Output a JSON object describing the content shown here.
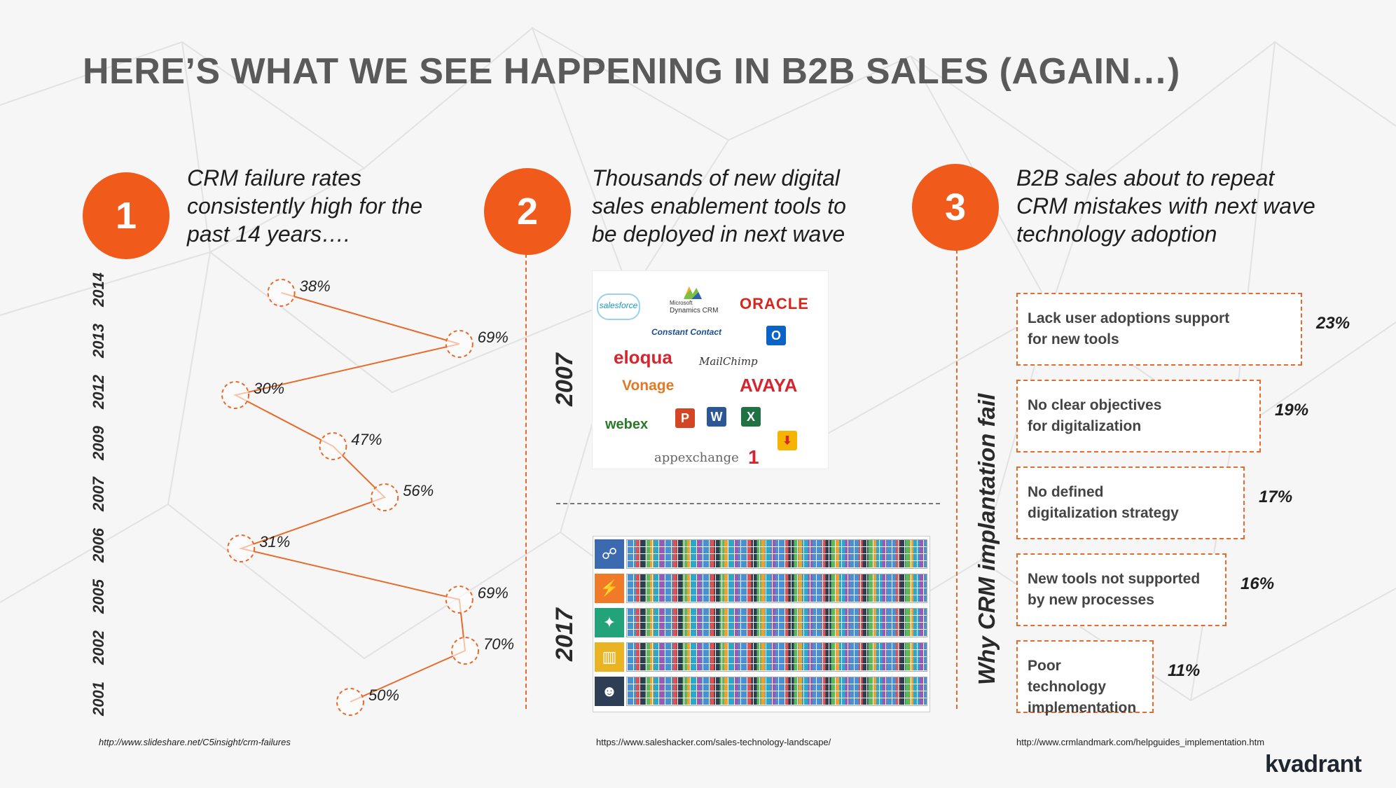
{
  "title": "HERE’S WHAT WE SEE HAPPENING IN B2B SALES (AGAIN…)",
  "colors": {
    "accent": "#f05a1a",
    "dash": "#e86a2a",
    "title": "#5a5a5a"
  },
  "columns": [
    {
      "number": "1",
      "heading": "CRM failure rates\nconsistently high for the\npast 14 years….",
      "source": "http://www.slideshare.net/C5insight/crm-failures"
    },
    {
      "number": "2",
      "heading": "Thousands of new digital\nsales enablement tools to\nbe deployed in next wave",
      "source": "https://www.saleshacker.com/sales-technology-landscape/"
    },
    {
      "number": "3",
      "heading": "B2B sales about to repeat\nCRM mistakes with next wave\ntechnology adoption",
      "source": "http://www.crmlandmark.com/helpguides_implementation.htm"
    }
  ],
  "chart_data": {
    "type": "line",
    "orientation": "vertical-years",
    "categories": [
      "2014",
      "2013",
      "2012",
      "2009",
      "2007",
      "2006",
      "2005",
      "2002",
      "2001"
    ],
    "values": [
      38,
      69,
      30,
      47,
      56,
      31,
      69,
      70,
      50
    ],
    "labels": [
      "38%",
      "69%",
      "30%",
      "47%",
      "56%",
      "31%",
      "69%",
      "70%",
      "50%"
    ]
  },
  "tools": {
    "year_old": "2007",
    "year_new": "2017",
    "logos": {
      "salesforce": "salesforce",
      "dynamics_small": "Microsoft",
      "dynamics": "Dynamics CRM",
      "oracle": "ORACLE",
      "constant_contact": "Constant Contact",
      "eloqua": "eloqua",
      "mailchimp": "MailChimp",
      "vonage": "Vonage",
      "avaya": "AVAYA",
      "webex": "webex",
      "appexchange": "appexchange",
      "ppt": "P",
      "word": "W",
      "excel": "X",
      "outlook": "O"
    },
    "categories": [
      {
        "icon": "engagement-icon",
        "color": "#3c6ab0"
      },
      {
        "icon": "productivity-icon",
        "color": "#f07a28"
      },
      {
        "icon": "sales-intelligence-icon",
        "color": "#23a37a"
      },
      {
        "icon": "analytics-icon",
        "color": "#e9b321"
      },
      {
        "icon": "people-icon",
        "color": "#2e3e55"
      }
    ]
  },
  "reasons": {
    "vertical_label": "Why CRM implantation fail",
    "items": [
      {
        "text": "Lack user adoptions support\nfor new tools",
        "pct": "23%"
      },
      {
        "text": "No clear objectives\nfor digitalization",
        "pct": "19%"
      },
      {
        "text": "No defined\ndigitalization strategy",
        "pct": "17%"
      },
      {
        "text": "New tools not supported\n by new processes",
        "pct": "16%"
      },
      {
        "text": "Poor technology\nimplementation",
        "pct": "11%"
      }
    ]
  },
  "brand": "kvadrant"
}
